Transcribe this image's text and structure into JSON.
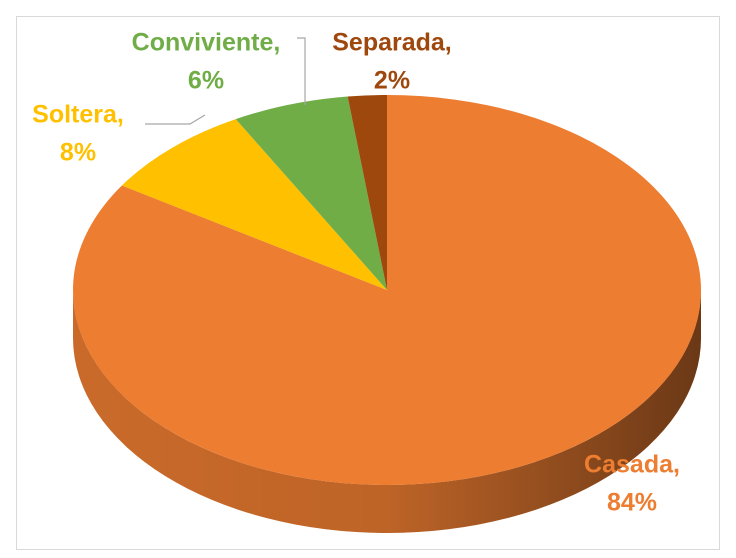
{
  "chart_data": {
    "type": "pie",
    "categories": [
      "Casada,",
      "Soltera,",
      "Conviviente,",
      "Separada,"
    ],
    "values": [
      84,
      8,
      6,
      2
    ],
    "value_labels": [
      "84%",
      "8%",
      "6%",
      "2%"
    ],
    "colors": [
      "#ED7D31",
      "#FFC000",
      "#70AD47",
      "#9E480E"
    ]
  }
}
